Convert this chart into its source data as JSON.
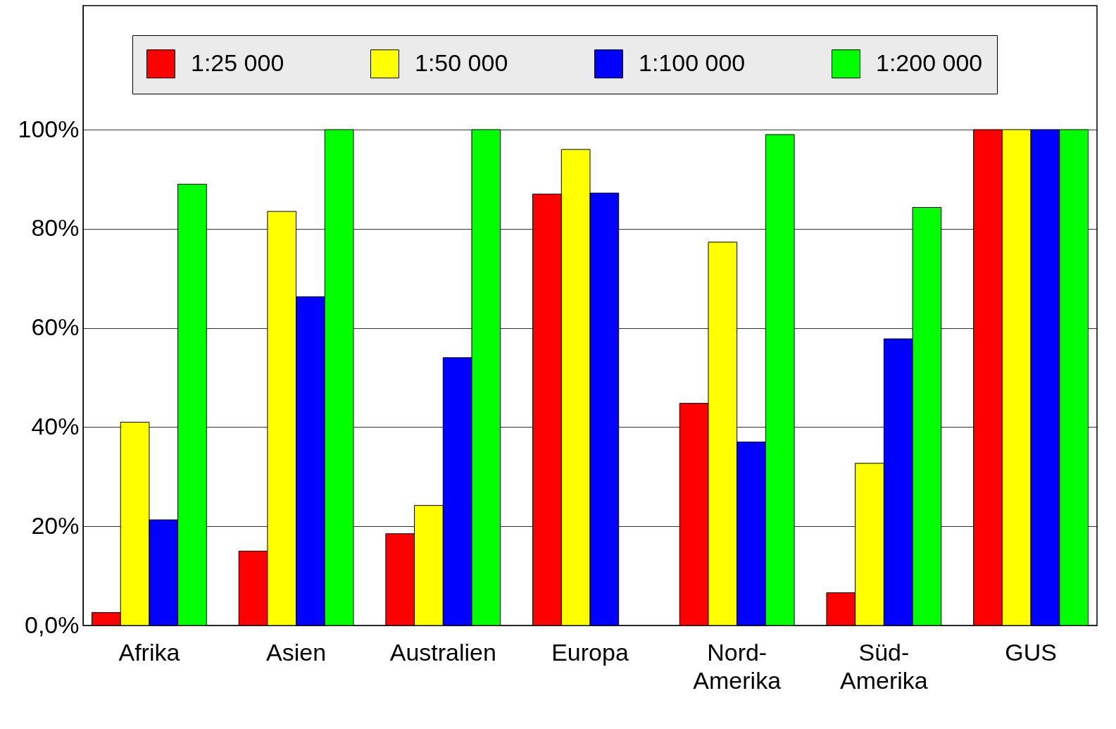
{
  "chart_data": {
    "type": "bar",
    "categories": [
      "Afrika",
      "Asien",
      "Australien",
      "Europa",
      "Nord-Amerika",
      "Süd-Amerika",
      "GUS"
    ],
    "series": [
      {
        "name": "1:25 000",
        "color": "#ff0000",
        "values": [
          2.6,
          15,
          18.5,
          87,
          44.8,
          6.6,
          100
        ]
      },
      {
        "name": "1:50 000",
        "color": "#ffff00",
        "values": [
          41,
          83.5,
          24.2,
          96,
          77.3,
          32.7,
          100
        ]
      },
      {
        "name": "1:100 000",
        "color": "#0000ff",
        "values": [
          21.3,
          66.3,
          54,
          87.2,
          37,
          57.8,
          100
        ]
      },
      {
        "name": "1:200 000",
        "color": "#00ff00",
        "values": [
          89,
          100,
          100,
          null,
          99,
          84.3,
          100
        ]
      }
    ],
    "ylim": [
      0,
      125
    ],
    "yticks": [
      {
        "value": 0,
        "label": "0,0%"
      },
      {
        "value": 20,
        "label": "20%"
      },
      {
        "value": 40,
        "label": "40%"
      },
      {
        "value": 60,
        "label": "60%"
      },
      {
        "value": 80,
        "label": "80%"
      },
      {
        "value": 100,
        "label": "100%"
      }
    ],
    "grid": "y",
    "legend": "top"
  }
}
